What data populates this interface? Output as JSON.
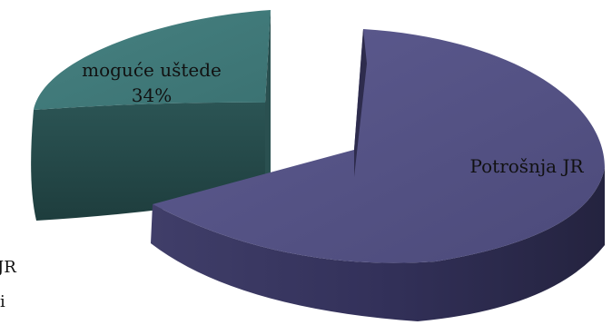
{
  "chart_data": {
    "type": "pie",
    "style": "3d-exploded",
    "slices": [
      {
        "label": "Potrošnja JR",
        "value": 66,
        "color": "#545283",
        "value_text": ""
      },
      {
        "label": "moguće uštede",
        "value": 34,
        "color": "#3e7777",
        "value_text": "34%"
      }
    ],
    "legend_fragments": [
      "JR",
      "i"
    ]
  }
}
